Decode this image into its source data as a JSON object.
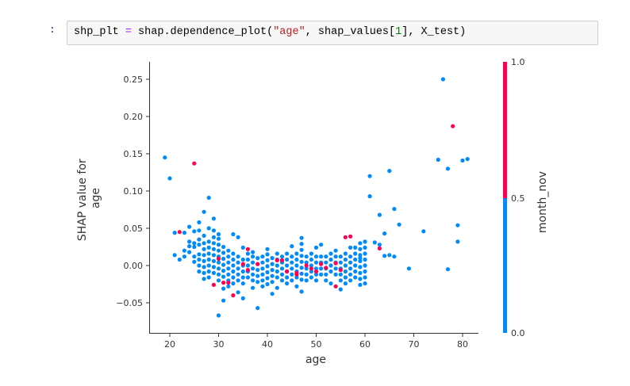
{
  "notebook": {
    "prompt": ":",
    "code": {
      "lhs": "shp_plt",
      "op": "=",
      "call": "shap.dependence_plot(",
      "arg1": "\"age\"",
      "sep1": ", shap_values[",
      "index": "1",
      "rest": "], X_test)"
    }
  },
  "colors": {
    "low": "#008bfb",
    "high": "#ff0052",
    "axis": "#333333"
  },
  "chart_data": {
    "type": "scatter",
    "title": "",
    "xlabel": "age",
    "ylabel_lines": [
      "SHAP value for",
      "age"
    ],
    "xlim": [
      16,
      84
    ],
    "ylim": [
      -0.09,
      0.27
    ],
    "xticks": [
      20,
      30,
      40,
      50,
      60,
      70,
      80
    ],
    "xtick_labels": [
      "20",
      "30",
      "40",
      "50",
      "60",
      "70",
      "80"
    ],
    "yticks": [
      -0.05,
      0.0,
      0.05,
      0.1,
      0.15,
      0.2,
      0.25
    ],
    "ytick_labels": [
      "−0.05",
      "0.00",
      "0.05",
      "0.10",
      "0.15",
      "0.20",
      "0.25"
    ],
    "grid": false,
    "colorbar": {
      "label": "month_nov",
      "ticks": [
        0.0,
        0.5,
        1.0
      ],
      "tick_labels": [
        "0.0",
        "0.5",
        "1.0"
      ],
      "low_color": "#008bfb",
      "high_color": "#ff0052"
    },
    "points": [
      [
        19,
        0.145,
        0
      ],
      [
        20,
        0.117,
        0
      ],
      [
        25,
        0.137,
        1
      ],
      [
        28,
        0.091,
        0
      ],
      [
        27,
        0.072,
        0
      ],
      [
        29,
        0.063,
        0
      ],
      [
        26,
        0.058,
        0
      ],
      [
        24,
        0.052,
        0
      ],
      [
        22,
        0.045,
        1
      ],
      [
        21,
        0.044,
        0
      ],
      [
        23,
        0.044,
        0
      ],
      [
        25,
        0.046,
        0
      ],
      [
        26,
        0.047,
        0
      ],
      [
        28,
        0.05,
        0
      ],
      [
        29,
        0.047,
        0
      ],
      [
        30,
        0.042,
        0
      ],
      [
        30,
        0.036,
        0
      ],
      [
        21,
        0.014,
        0
      ],
      [
        22,
        0.008,
        0
      ],
      [
        23,
        0.02,
        0
      ],
      [
        23,
        0.012,
        0
      ],
      [
        24,
        0.032,
        0
      ],
      [
        24,
        0.026,
        0
      ],
      [
        24,
        0.018,
        0
      ],
      [
        25,
        0.03,
        0
      ],
      [
        25,
        0.025,
        0
      ],
      [
        25,
        0.012,
        0
      ],
      [
        25,
        0.005,
        0
      ],
      [
        26,
        0.035,
        0
      ],
      [
        26,
        0.028,
        0
      ],
      [
        26,
        0.015,
        0
      ],
      [
        26,
        0.008,
        0
      ],
      [
        26,
        0.0,
        0
      ],
      [
        26,
        -0.008,
        0
      ],
      [
        27,
        0.04,
        0
      ],
      [
        27,
        0.03,
        0
      ],
      [
        27,
        0.022,
        0
      ],
      [
        27,
        0.014,
        0
      ],
      [
        27,
        0.006,
        0
      ],
      [
        27,
        -0.002,
        0
      ],
      [
        27,
        -0.01,
        0
      ],
      [
        27,
        -0.018,
        0
      ],
      [
        28,
        0.032,
        0
      ],
      [
        28,
        0.024,
        0
      ],
      [
        28,
        0.016,
        0
      ],
      [
        28,
        0.008,
        0
      ],
      [
        28,
        0.0,
        0
      ],
      [
        28,
        -0.008,
        0
      ],
      [
        28,
        -0.016,
        0
      ],
      [
        29,
        0.038,
        0
      ],
      [
        29,
        0.03,
        0
      ],
      [
        29,
        0.022,
        0
      ],
      [
        29,
        0.014,
        0
      ],
      [
        29,
        0.006,
        0
      ],
      [
        29,
        -0.002,
        0
      ],
      [
        29,
        -0.01,
        0
      ],
      [
        29,
        -0.026,
        1
      ],
      [
        30,
        0.028,
        0
      ],
      [
        30,
        0.02,
        0
      ],
      [
        30,
        0.012,
        0
      ],
      [
        30,
        0.004,
        0
      ],
      [
        30,
        -0.004,
        0
      ],
      [
        30,
        -0.012,
        0
      ],
      [
        30,
        -0.02,
        0
      ],
      [
        30,
        -0.067,
        0
      ],
      [
        30,
        0.009,
        1
      ],
      [
        31,
        0.025,
        0
      ],
      [
        31,
        0.017,
        0
      ],
      [
        31,
        0.009,
        0
      ],
      [
        31,
        0.001,
        0
      ],
      [
        31,
        -0.007,
        0
      ],
      [
        31,
        -0.015,
        0
      ],
      [
        31,
        -0.023,
        1
      ],
      [
        31,
        -0.031,
        0
      ],
      [
        31,
        -0.047,
        0
      ],
      [
        32,
        0.02,
        0
      ],
      [
        32,
        0.012,
        0
      ],
      [
        32,
        0.004,
        0
      ],
      [
        32,
        -0.004,
        0
      ],
      [
        32,
        -0.012,
        0
      ],
      [
        32,
        -0.02,
        0
      ],
      [
        32,
        -0.028,
        0
      ],
      [
        32,
        -0.023,
        1
      ],
      [
        33,
        0.016,
        0
      ],
      [
        33,
        0.008,
        0
      ],
      [
        33,
        0.0,
        0
      ],
      [
        33,
        -0.008,
        0
      ],
      [
        33,
        -0.016,
        0
      ],
      [
        33,
        -0.024,
        0
      ],
      [
        33,
        -0.04,
        1
      ],
      [
        33,
        0.042,
        0
      ],
      [
        34,
        0.038,
        0
      ],
      [
        34,
        0.012,
        0
      ],
      [
        34,
        0.004,
        0
      ],
      [
        34,
        -0.004,
        0
      ],
      [
        34,
        -0.012,
        0
      ],
      [
        34,
        -0.02,
        0
      ],
      [
        34,
        -0.036,
        0
      ],
      [
        35,
        0.024,
        0
      ],
      [
        35,
        0.008,
        0
      ],
      [
        35,
        0.0,
        0
      ],
      [
        35,
        -0.008,
        0
      ],
      [
        35,
        -0.016,
        0
      ],
      [
        35,
        -0.024,
        0
      ],
      [
        35,
        -0.044,
        0
      ],
      [
        35,
        0.002,
        1
      ],
      [
        36,
        0.016,
        0
      ],
      [
        36,
        0.008,
        0
      ],
      [
        36,
        0.0,
        0
      ],
      [
        36,
        -0.008,
        0
      ],
      [
        36,
        -0.016,
        0
      ],
      [
        36,
        -0.006,
        1
      ],
      [
        36,
        0.022,
        1
      ],
      [
        37,
        0.012,
        0
      ],
      [
        37,
        0.004,
        0
      ],
      [
        37,
        -0.004,
        0
      ],
      [
        37,
        -0.012,
        0
      ],
      [
        37,
        -0.02,
        0
      ],
      [
        37,
        -0.03,
        0
      ],
      [
        37,
        0.018,
        0
      ],
      [
        38,
        0.01,
        0
      ],
      [
        38,
        0.002,
        0
      ],
      [
        38,
        -0.006,
        0
      ],
      [
        38,
        -0.014,
        0
      ],
      [
        38,
        -0.022,
        0
      ],
      [
        38,
        -0.057,
        0
      ],
      [
        38,
        0.002,
        1
      ],
      [
        39,
        0.012,
        0
      ],
      [
        39,
        0.004,
        0
      ],
      [
        39,
        -0.004,
        0
      ],
      [
        39,
        -0.012,
        0
      ],
      [
        39,
        -0.02,
        0
      ],
      [
        39,
        -0.028,
        0
      ],
      [
        40,
        0.015,
        0
      ],
      [
        40,
        0.007,
        0
      ],
      [
        40,
        -0.001,
        0
      ],
      [
        40,
        -0.009,
        0
      ],
      [
        40,
        -0.017,
        0
      ],
      [
        40,
        -0.025,
        0
      ],
      [
        40,
        0.022,
        0
      ],
      [
        41,
        0.01,
        0
      ],
      [
        41,
        0.002,
        0
      ],
      [
        41,
        -0.006,
        0
      ],
      [
        41,
        -0.014,
        0
      ],
      [
        41,
        -0.022,
        0
      ],
      [
        41,
        -0.038,
        0
      ],
      [
        42,
        0.016,
        0
      ],
      [
        42,
        0.008,
        0
      ],
      [
        42,
        0.0,
        0
      ],
      [
        42,
        -0.008,
        0
      ],
      [
        42,
        -0.016,
        0
      ],
      [
        42,
        -0.03,
        0
      ],
      [
        42,
        0.007,
        1
      ],
      [
        43,
        0.012,
        0
      ],
      [
        43,
        0.004,
        0
      ],
      [
        43,
        -0.004,
        0
      ],
      [
        43,
        -0.012,
        0
      ],
      [
        43,
        -0.02,
        0
      ],
      [
        43,
        0.007,
        1
      ],
      [
        44,
        0.016,
        0
      ],
      [
        44,
        0.008,
        0
      ],
      [
        44,
        0.0,
        0
      ],
      [
        44,
        -0.008,
        0
      ],
      [
        44,
        -0.016,
        0
      ],
      [
        44,
        -0.024,
        0
      ],
      [
        44,
        -0.008,
        1
      ],
      [
        45,
        0.012,
        0
      ],
      [
        45,
        0.004,
        0
      ],
      [
        45,
        -0.004,
        0
      ],
      [
        45,
        -0.012,
        0
      ],
      [
        45,
        -0.02,
        0
      ],
      [
        45,
        0.026,
        0
      ],
      [
        46,
        0.016,
        0
      ],
      [
        46,
        0.008,
        0
      ],
      [
        46,
        0.0,
        0
      ],
      [
        46,
        -0.008,
        0
      ],
      [
        46,
        -0.016,
        0
      ],
      [
        46,
        -0.028,
        0
      ],
      [
        46,
        -0.01,
        1
      ],
      [
        46,
        -0.012,
        1
      ],
      [
        47,
        0.037,
        0
      ],
      [
        47,
        0.029,
        0
      ],
      [
        47,
        0.021,
        0
      ],
      [
        47,
        0.013,
        0
      ],
      [
        47,
        0.005,
        0
      ],
      [
        47,
        -0.003,
        0
      ],
      [
        47,
        -0.011,
        0
      ],
      [
        47,
        -0.019,
        0
      ],
      [
        47,
        -0.035,
        0
      ],
      [
        48,
        0.012,
        0
      ],
      [
        48,
        0.004,
        0
      ],
      [
        48,
        -0.004,
        0
      ],
      [
        48,
        -0.012,
        0
      ],
      [
        48,
        -0.02,
        0
      ],
      [
        48,
        0.0,
        1
      ],
      [
        49,
        0.016,
        0
      ],
      [
        49,
        0.008,
        0
      ],
      [
        49,
        0.0,
        0
      ],
      [
        49,
        -0.008,
        0
      ],
      [
        49,
        -0.016,
        0
      ],
      [
        49,
        -0.004,
        1
      ],
      [
        50,
        0.024,
        0
      ],
      [
        50,
        0.012,
        0
      ],
      [
        50,
        0.004,
        0
      ],
      [
        50,
        -0.004,
        0
      ],
      [
        50,
        -0.012,
        0
      ],
      [
        50,
        -0.02,
        0
      ],
      [
        50,
        -0.008,
        1
      ],
      [
        51,
        0.028,
        0
      ],
      [
        51,
        0.012,
        0
      ],
      [
        51,
        0.004,
        0
      ],
      [
        51,
        -0.004,
        0
      ],
      [
        51,
        -0.012,
        0
      ],
      [
        51,
        0.002,
        1
      ],
      [
        52,
        0.012,
        0
      ],
      [
        52,
        0.004,
        0
      ],
      [
        52,
        -0.004,
        0
      ],
      [
        52,
        -0.012,
        0
      ],
      [
        52,
        -0.02,
        0
      ],
      [
        52,
        -0.003,
        1
      ],
      [
        53,
        0.016,
        0
      ],
      [
        53,
        0.008,
        0
      ],
      [
        53,
        0.0,
        0
      ],
      [
        53,
        -0.008,
        0
      ],
      [
        53,
        -0.024,
        0
      ],
      [
        54,
        0.02,
        0
      ],
      [
        54,
        0.012,
        0
      ],
      [
        54,
        0.004,
        0
      ],
      [
        54,
        -0.004,
        0
      ],
      [
        54,
        -0.012,
        0
      ],
      [
        54,
        0.003,
        1
      ],
      [
        54,
        -0.028,
        1
      ],
      [
        55,
        0.012,
        0
      ],
      [
        55,
        0.004,
        0
      ],
      [
        55,
        -0.004,
        0
      ],
      [
        55,
        -0.012,
        0
      ],
      [
        55,
        -0.02,
        0
      ],
      [
        55,
        -0.032,
        0
      ],
      [
        55,
        -0.006,
        1
      ],
      [
        56,
        0.038,
        1
      ],
      [
        56,
        0.016,
        0
      ],
      [
        56,
        0.008,
        0
      ],
      [
        56,
        0.0,
        0
      ],
      [
        56,
        -0.008,
        0
      ],
      [
        56,
        -0.016,
        0
      ],
      [
        56,
        -0.024,
        0
      ],
      [
        57,
        0.039,
        1
      ],
      [
        57,
        0.024,
        0
      ],
      [
        57,
        0.012,
        0
      ],
      [
        57,
        0.004,
        0
      ],
      [
        57,
        -0.004,
        0
      ],
      [
        57,
        -0.012,
        0
      ],
      [
        57,
        -0.02,
        0
      ],
      [
        58,
        0.016,
        0
      ],
      [
        58,
        0.008,
        0
      ],
      [
        58,
        0.0,
        0
      ],
      [
        58,
        -0.008,
        0
      ],
      [
        58,
        -0.016,
        0
      ],
      [
        58,
        0.024,
        0
      ],
      [
        59,
        0.03,
        0
      ],
      [
        59,
        0.022,
        0
      ],
      [
        59,
        0.014,
        0
      ],
      [
        59,
        0.006,
        0
      ],
      [
        59,
        -0.002,
        0
      ],
      [
        59,
        -0.01,
        0
      ],
      [
        59,
        -0.018,
        0
      ],
      [
        59,
        -0.026,
        0
      ],
      [
        59,
        0.01,
        0
      ],
      [
        60,
        0.032,
        0
      ],
      [
        60,
        0.024,
        0
      ],
      [
        60,
        0.016,
        0
      ],
      [
        60,
        0.008,
        0
      ],
      [
        60,
        0.0,
        0
      ],
      [
        60,
        -0.008,
        0
      ],
      [
        60,
        -0.016,
        0
      ],
      [
        60,
        -0.024,
        0
      ],
      [
        61,
        0.12,
        0
      ],
      [
        61,
        0.093,
        0
      ],
      [
        63,
        0.068,
        0
      ],
      [
        65,
        0.127,
        0
      ],
      [
        66,
        0.076,
        0
      ],
      [
        64,
        0.043,
        0
      ],
      [
        67,
        0.055,
        0
      ],
      [
        63,
        0.028,
        0
      ],
      [
        63,
        0.023,
        1
      ],
      [
        62,
        0.031,
        0
      ],
      [
        64,
        0.013,
        0
      ],
      [
        65,
        0.014,
        0
      ],
      [
        66,
        0.012,
        0
      ],
      [
        69,
        -0.004,
        0
      ],
      [
        72,
        0.046,
        0
      ],
      [
        75,
        0.142,
        0
      ],
      [
        76,
        0.25,
        0
      ],
      [
        77,
        0.13,
        0
      ],
      [
        77,
        -0.005,
        0
      ],
      [
        78,
        0.187,
        1
      ],
      [
        79,
        0.054,
        0
      ],
      [
        79,
        0.032,
        0
      ],
      [
        80,
        0.141,
        0
      ],
      [
        81,
        0.143,
        0
      ]
    ]
  }
}
